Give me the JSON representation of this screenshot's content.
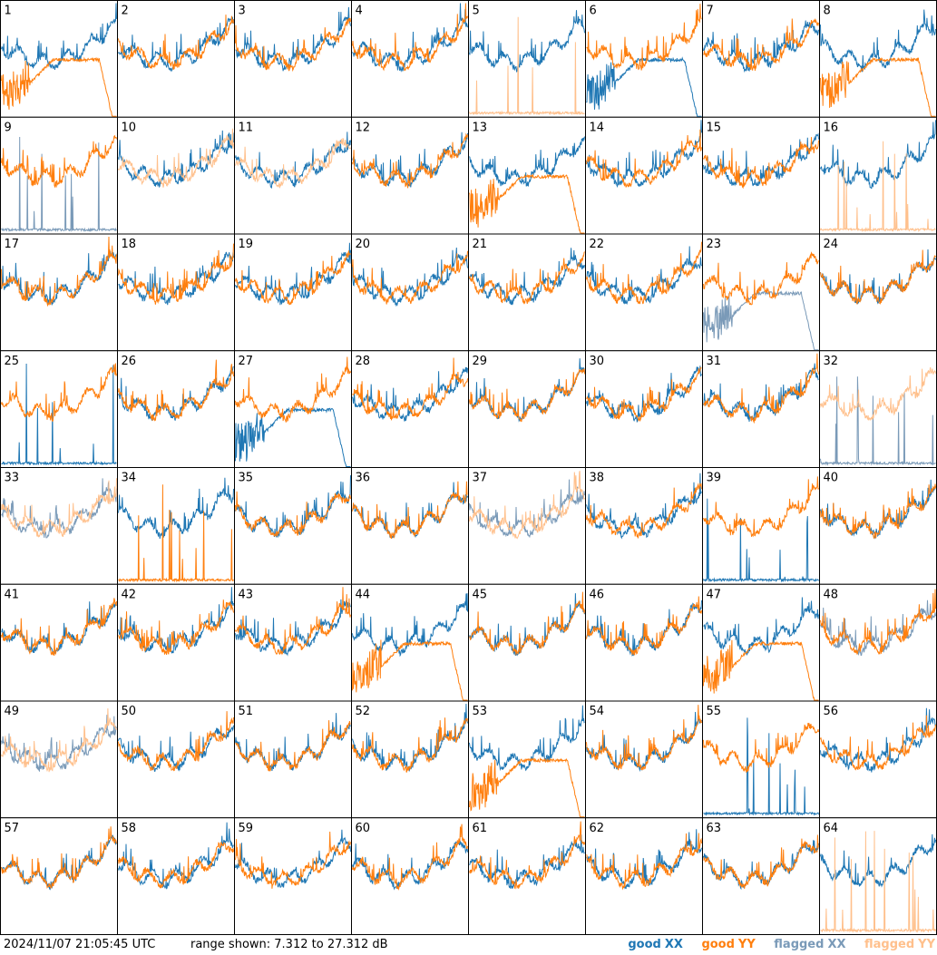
{
  "footer": {
    "timestamp": "2024/11/07 21:05:45 UTC",
    "range_text": "range shown: 7.312 to 27.312 dB"
  },
  "legend": [
    {
      "word": "good",
      "pol": "XX",
      "color": "#1f77b4"
    },
    {
      "word": "good",
      "pol": "YY",
      "color": "#ff7f0e"
    },
    {
      "word": "flagged",
      "pol": "XX",
      "color": "#7a9ab8"
    },
    {
      "word": "flagged",
      "pol": "YY",
      "color": "#ffc08c"
    }
  ],
  "colors": {
    "good_xx": "#1f77b4",
    "good_yy": "#ff7f0e",
    "flagged_xx": "#7a9ab8",
    "flagged_yy": "#ffc08c"
  },
  "chart_data": {
    "type": "line",
    "grid": {
      "rows": 8,
      "cols": 8
    },
    "ylim": [
      7.312,
      27.312
    ],
    "y_unit": "dB",
    "tiles": [
      {
        "id": 1,
        "xx": "good",
        "yy": "good",
        "xx_shape": "normal",
        "yy_shape": "dropoff"
      },
      {
        "id": 2,
        "xx": "good",
        "yy": "good",
        "xx_shape": "normal",
        "yy_shape": "normal"
      },
      {
        "id": 3,
        "xx": "good",
        "yy": "good",
        "xx_shape": "normal",
        "yy_shape": "normal"
      },
      {
        "id": 4,
        "xx": "good",
        "yy": "good",
        "xx_shape": "normal",
        "yy_shape": "normal"
      },
      {
        "id": 5,
        "xx": "good",
        "yy": "flagged",
        "xx_shape": "normal",
        "yy_shape": "spiky-low"
      },
      {
        "id": 6,
        "xx": "good",
        "yy": "good",
        "xx_shape": "dropoff",
        "yy_shape": "normal"
      },
      {
        "id": 7,
        "xx": "good",
        "yy": "good",
        "xx_shape": "normal",
        "yy_shape": "normal"
      },
      {
        "id": 8,
        "xx": "good",
        "yy": "good",
        "xx_shape": "normal",
        "yy_shape": "dropoff"
      },
      {
        "id": 9,
        "xx": "flagged",
        "yy": "good",
        "xx_shape": "spiky-low",
        "yy_shape": "normal"
      },
      {
        "id": 10,
        "xx": "good",
        "yy": "flagged",
        "xx_shape": "normal",
        "yy_shape": "normal"
      },
      {
        "id": 11,
        "xx": "good",
        "yy": "flagged",
        "xx_shape": "normal",
        "yy_shape": "normal"
      },
      {
        "id": 12,
        "xx": "good",
        "yy": "good",
        "xx_shape": "normal",
        "yy_shape": "normal"
      },
      {
        "id": 13,
        "xx": "good",
        "yy": "good",
        "xx_shape": "normal",
        "yy_shape": "dropoff"
      },
      {
        "id": 14,
        "xx": "good",
        "yy": "good",
        "xx_shape": "normal",
        "yy_shape": "normal"
      },
      {
        "id": 15,
        "xx": "good",
        "yy": "good",
        "xx_shape": "normal",
        "yy_shape": "normal"
      },
      {
        "id": 16,
        "xx": "good",
        "yy": "flagged",
        "xx_shape": "normal",
        "yy_shape": "spiky-low"
      },
      {
        "id": 17,
        "xx": "good",
        "yy": "good",
        "xx_shape": "normal",
        "yy_shape": "normal"
      },
      {
        "id": 18,
        "xx": "good",
        "yy": "good",
        "xx_shape": "normal",
        "yy_shape": "normal"
      },
      {
        "id": 19,
        "xx": "good",
        "yy": "good",
        "xx_shape": "normal",
        "yy_shape": "normal"
      },
      {
        "id": 20,
        "xx": "good",
        "yy": "good",
        "xx_shape": "normal",
        "yy_shape": "normal"
      },
      {
        "id": 21,
        "xx": "good",
        "yy": "good",
        "xx_shape": "normal",
        "yy_shape": "normal"
      },
      {
        "id": 22,
        "xx": "good",
        "yy": "good",
        "xx_shape": "normal",
        "yy_shape": "normal"
      },
      {
        "id": 23,
        "xx": "flagged",
        "yy": "good",
        "xx_shape": "dropoff",
        "yy_shape": "normal"
      },
      {
        "id": 24,
        "xx": "good",
        "yy": "good",
        "xx_shape": "normal",
        "yy_shape": "normal"
      },
      {
        "id": 25,
        "xx": "good",
        "yy": "good",
        "xx_shape": "spiky-low",
        "yy_shape": "normal"
      },
      {
        "id": 26,
        "xx": "good",
        "yy": "good",
        "xx_shape": "normal",
        "yy_shape": "normal"
      },
      {
        "id": 27,
        "xx": "good",
        "yy": "good",
        "xx_shape": "dropoff",
        "yy_shape": "normal"
      },
      {
        "id": 28,
        "xx": "good",
        "yy": "good",
        "xx_shape": "normal",
        "yy_shape": "normal"
      },
      {
        "id": 29,
        "xx": "good",
        "yy": "good",
        "xx_shape": "normal",
        "yy_shape": "normal"
      },
      {
        "id": 30,
        "xx": "good",
        "yy": "good",
        "xx_shape": "normal",
        "yy_shape": "normal"
      },
      {
        "id": 31,
        "xx": "good",
        "yy": "good",
        "xx_shape": "normal",
        "yy_shape": "normal"
      },
      {
        "id": 32,
        "xx": "flagged",
        "yy": "flagged",
        "xx_shape": "spiky-low",
        "yy_shape": "normal"
      },
      {
        "id": 33,
        "xx": "flagged",
        "yy": "flagged",
        "xx_shape": "normal",
        "yy_shape": "normal"
      },
      {
        "id": 34,
        "xx": "good",
        "yy": "good",
        "xx_shape": "normal",
        "yy_shape": "spiky-low"
      },
      {
        "id": 35,
        "xx": "good",
        "yy": "good",
        "xx_shape": "normal",
        "yy_shape": "normal"
      },
      {
        "id": 36,
        "xx": "good",
        "yy": "good",
        "xx_shape": "normal",
        "yy_shape": "normal"
      },
      {
        "id": 37,
        "xx": "flagged",
        "yy": "flagged",
        "xx_shape": "normal",
        "yy_shape": "normal"
      },
      {
        "id": 38,
        "xx": "good",
        "yy": "good",
        "xx_shape": "normal",
        "yy_shape": "normal"
      },
      {
        "id": 39,
        "xx": "good",
        "yy": "good",
        "xx_shape": "spiky-low",
        "yy_shape": "normal"
      },
      {
        "id": 40,
        "xx": "good",
        "yy": "good",
        "xx_shape": "normal",
        "yy_shape": "normal"
      },
      {
        "id": 41,
        "xx": "good",
        "yy": "good",
        "xx_shape": "normal",
        "yy_shape": "normal"
      },
      {
        "id": 42,
        "xx": "good",
        "yy": "good",
        "xx_shape": "normal",
        "yy_shape": "normal"
      },
      {
        "id": 43,
        "xx": "good",
        "yy": "good",
        "xx_shape": "normal",
        "yy_shape": "normal"
      },
      {
        "id": 44,
        "xx": "good",
        "yy": "good",
        "xx_shape": "normal",
        "yy_shape": "dropoff"
      },
      {
        "id": 45,
        "xx": "good",
        "yy": "good",
        "xx_shape": "normal",
        "yy_shape": "normal"
      },
      {
        "id": 46,
        "xx": "good",
        "yy": "good",
        "xx_shape": "normal",
        "yy_shape": "normal"
      },
      {
        "id": 47,
        "xx": "good",
        "yy": "good",
        "xx_shape": "normal",
        "yy_shape": "dropoff"
      },
      {
        "id": 48,
        "xx": "flagged",
        "yy": "good",
        "xx_shape": "normal",
        "yy_shape": "normal"
      },
      {
        "id": 49,
        "xx": "flagged",
        "yy": "flagged",
        "xx_shape": "normal",
        "yy_shape": "normal"
      },
      {
        "id": 50,
        "xx": "good",
        "yy": "good",
        "xx_shape": "normal",
        "yy_shape": "normal"
      },
      {
        "id": 51,
        "xx": "good",
        "yy": "good",
        "xx_shape": "normal",
        "yy_shape": "normal"
      },
      {
        "id": 52,
        "xx": "good",
        "yy": "good",
        "xx_shape": "normal",
        "yy_shape": "normal"
      },
      {
        "id": 53,
        "xx": "good",
        "yy": "good",
        "xx_shape": "normal",
        "yy_shape": "dropoff"
      },
      {
        "id": 54,
        "xx": "good",
        "yy": "good",
        "xx_shape": "normal",
        "yy_shape": "normal"
      },
      {
        "id": 55,
        "xx": "good",
        "yy": "good",
        "xx_shape": "spiky-low",
        "yy_shape": "normal"
      },
      {
        "id": 56,
        "xx": "good",
        "yy": "good",
        "xx_shape": "normal",
        "yy_shape": "normal"
      },
      {
        "id": 57,
        "xx": "good",
        "yy": "good",
        "xx_shape": "normal",
        "yy_shape": "normal"
      },
      {
        "id": 58,
        "xx": "good",
        "yy": "good",
        "xx_shape": "normal",
        "yy_shape": "normal"
      },
      {
        "id": 59,
        "xx": "good",
        "yy": "good",
        "xx_shape": "normal",
        "yy_shape": "normal"
      },
      {
        "id": 60,
        "xx": "good",
        "yy": "good",
        "xx_shape": "normal",
        "yy_shape": "normal"
      },
      {
        "id": 61,
        "xx": "good",
        "yy": "good",
        "xx_shape": "normal",
        "yy_shape": "normal"
      },
      {
        "id": 62,
        "xx": "good",
        "yy": "good",
        "xx_shape": "normal",
        "yy_shape": "normal"
      },
      {
        "id": 63,
        "xx": "good",
        "yy": "good",
        "xx_shape": "normal",
        "yy_shape": "normal"
      },
      {
        "id": 64,
        "xx": "good",
        "yy": "flagged",
        "xx_shape": "normal",
        "yy_shape": "spiky-low"
      }
    ]
  }
}
